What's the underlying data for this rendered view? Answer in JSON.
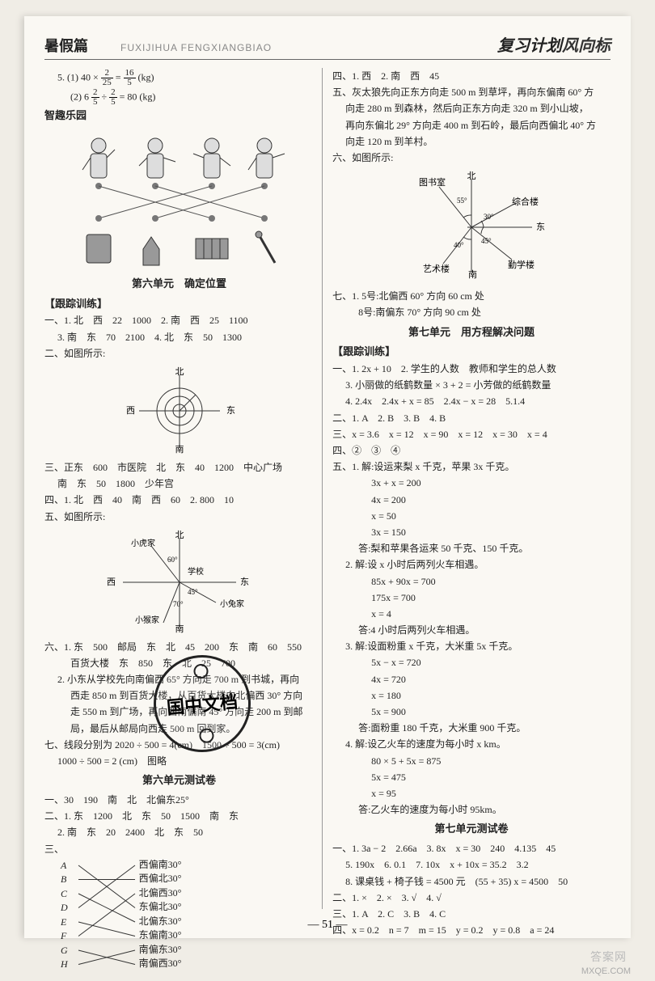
{
  "header": {
    "title_left": "暑假篇",
    "pinyin": "FUXIJIHUA FENGXIANGBIAO",
    "title_right_a": "复习计划",
    "title_right_b": "风向标"
  },
  "left": {
    "l5_1": "5. (1) 40 × ",
    "l5_1b": " = ",
    "l5_1c": " (kg)",
    "frac_2_25": {
      "n": "2",
      "d": "25"
    },
    "frac_16_5": {
      "n": "16",
      "d": "5"
    },
    "l5_2a": "(2) 6 ",
    "l5_2b": " ÷ ",
    "l5_2c": " = 80 (kg)",
    "frac_2_5a": {
      "n": "2",
      "d": "5"
    },
    "frac_2_5b": {
      "n": "2",
      "d": "5"
    },
    "zhiqu": "智趣乐园",
    "unit6": "第六单元　确定位置",
    "track1": "【跟踪训练】",
    "t1_1": "一、1. 北　西　22　1000　2. 南　西　25　1100",
    "t1_3": "3. 南　东　70　2100　4. 北　东　50　1300",
    "t2": "二、如图所示:",
    "compass_labels": {
      "n": "北",
      "s": "南",
      "e": "东",
      "w": "西"
    },
    "t3_1": "三、正东　600　市医院　北　东　40　1200　中心广场",
    "t3_2": "南　东　50　1800　少年宫",
    "t4": "四、1. 北　西　40　南　西　60　2. 800　10",
    "t5": "五、如图所示:",
    "diag5": {
      "n": "北",
      "s": "南",
      "e": "东",
      "w": "西",
      "nw": "小虎家",
      "center": "学校",
      "se": "小兔家",
      "sw": "小猴家",
      "a60": "60°",
      "a45": "45°",
      "a70": "70°"
    },
    "t6_1": "六、1. 东　500　邮局　东　北　45　200　东　南　60　550",
    "t6_1b": "百货大楼　东　850　东　北　25　700",
    "t6_2": "2. 小东从学校先向南偏西 65° 方向走 700 m 到书城，再向",
    "t6_2b": "西走 850 m 到百货大楼，从百货大楼向北偏西 30° 方向",
    "t6_2c": "走 550 m 到广场，再向西南偏南 45° 方向走 200 m 到邮",
    "t6_2d": "局，最后从邮局向西走 500 m 回到家。",
    "t7": "七、线段分别为 2020 ÷ 500 = 4(cm)　1500 ÷ 500 = 3(cm)",
    "t7b": "1000 ÷ 500 = 2 (cm)　图略",
    "test6": "第六单元测试卷",
    "s1": "一、30　190　南　北　北偏东25°",
    "s2_1": "二、1. 东　1200　北　东　50　1500　南　东",
    "s2_2": "2. 南　东　20　2400　北　东　50",
    "s3": "三、",
    "match": {
      "letters": [
        "A",
        "B",
        "C",
        "D",
        "E",
        "F",
        "G",
        "H"
      ],
      "labels": [
        "西偏南30°",
        "西偏北30°",
        "北偏西30°",
        "东偏北30°",
        "北偏东30°",
        "东偏南30°",
        "南偏东30°",
        "南偏西30°"
      ],
      "edges": [
        [
          0,
          3
        ],
        [
          1,
          1
        ],
        [
          2,
          4
        ],
        [
          3,
          0
        ],
        [
          4,
          5
        ],
        [
          5,
          2
        ],
        [
          6,
          7
        ],
        [
          7,
          6
        ]
      ]
    }
  },
  "right": {
    "r4": "四、1. 西　2. 南　西　45",
    "r5_1": "五、灰太狼先向正东方向走 500 m 到草坪，再向东偏南 60° 方",
    "r5_2": "向走 280 m 到森林，然后向正东方向走 320 m 到小山坡，",
    "r5_3": "再向东偏北 29° 方向走 400 m 到石岭，最后向西偏北 40° 方",
    "r5_4": "向走 120 m 到羊村。",
    "r6": "六、如图所示:",
    "diag6": {
      "n": "北",
      "e": "东",
      "nw": "图书室",
      "ne": "综合楼",
      "sw": "艺术楼",
      "se": "勤学楼",
      "s": "南",
      "a55": "55°",
      "a40": "40°",
      "a45": "45°",
      "a30": "30°"
    },
    "r7_1": "七、1. 5号:北偏西 60° 方向 60 cm 处",
    "r7_2": "8号:南偏东 70° 方向 90 cm 处",
    "unit7": "第七单元　用方程解决问题",
    "track2": "【跟踪训练】",
    "u1_1": "一、1. 2x + 10　2. 学生的人数　教师和学生的总人数",
    "u1_3": "3. 小丽做的纸鹤数量 × 3 + 2 = 小芳做的纸鹤数量",
    "u1_4": "4. 2.4x　2.4x + x = 85　2.4x − x = 28　5.1.4",
    "u2": "二、1. A　2. B　3. B　4. B",
    "u3": "三、x = 3.6　x = 12　x = 90　x = 12　x = 30　x = 4",
    "u4": "四、②　③　④",
    "u5_1": "五、1. 解:设运来梨 x 千克，苹果 3x 千克。",
    "u5_1a": "3x + x = 200",
    "u5_1b": "4x = 200",
    "u5_1c": "x = 50",
    "u5_1d": "3x = 150",
    "u5_1ans": "答:梨和苹果各运来 50 千克、150 千克。",
    "u5_2": "2. 解:设 x 小时后两列火车相遇。",
    "u5_2a": "85x + 90x = 700",
    "u5_2b": "175x = 700",
    "u5_2c": "x = 4",
    "u5_2ans": "答:4 小时后两列火车相遇。",
    "u5_3": "3. 解:设面粉重 x 千克，大米重 5x 千克。",
    "u5_3a": "5x − x = 720",
    "u5_3b": "4x = 720",
    "u5_3c": "x = 180",
    "u5_3d": "5x = 900",
    "u5_3ans": "答:面粉重 180 千克，大米重 900 千克。",
    "u5_4": "4. 解:设乙火车的速度为每小时 x km。",
    "u5_4a": "80 × 5 + 5x = 875",
    "u5_4b": "5x = 475",
    "u5_4c": "x = 95",
    "u5_4ans": "答:乙火车的速度为每小时 95km。",
    "test7": "第七单元测试卷",
    "v1_1": "一、1. 3a − 2　2.66a　3. 8x　x = 30　240　4.135　45",
    "v1_5": "5. 190x　6. 0.1　7. 10x　x + 10x = 35.2　3.2",
    "v1_8": "8. 课桌钱 + 椅子钱 = 4500 元　(55 + 35) x = 4500　50",
    "v2": "二、1. ×　2. ×　3. √　4. √",
    "v3": "三、1. A　2. C　3. B　4. C",
    "v4": "四、x = 0.2　n = 7　m = 15　y = 0.2　y = 0.8　a = 24"
  },
  "footer": "— 51 —",
  "stamp": "国中文档",
  "wm1": "答案网",
  "wm2": "MXQE.COM"
}
